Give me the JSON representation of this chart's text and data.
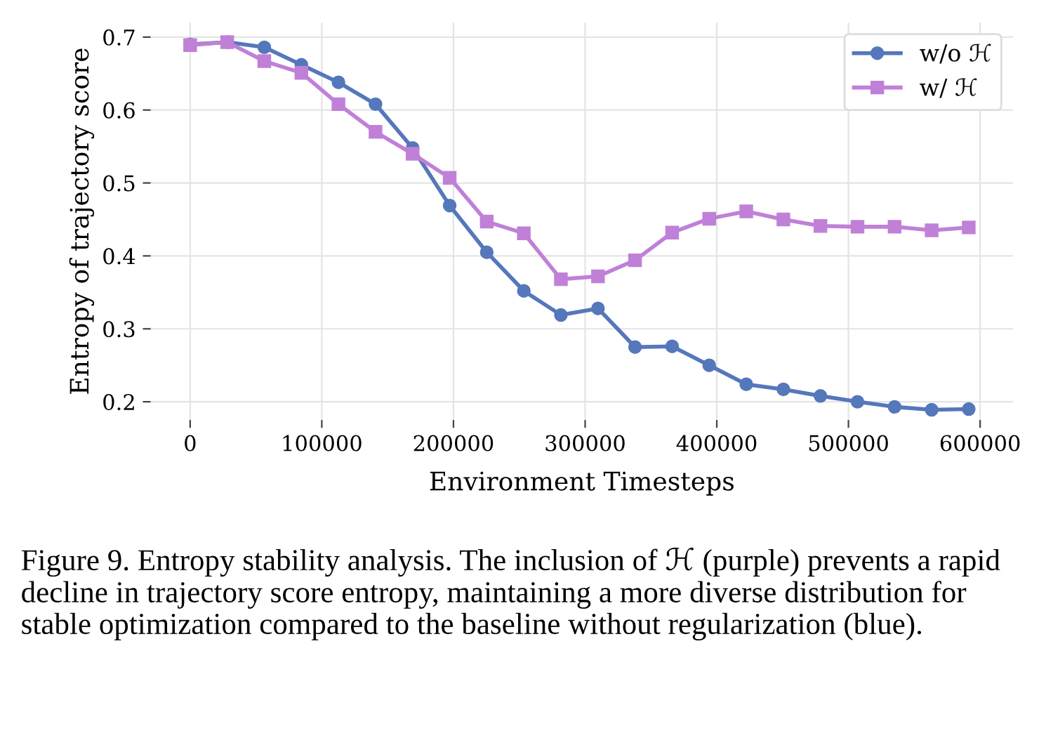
{
  "chart_data": {
    "type": "line",
    "xlabel": "Environment Timesteps",
    "ylabel": "Entropy of trajectory score",
    "x": [
      0,
      28160,
      56320,
      84480,
      112640,
      140800,
      168960,
      197120,
      225280,
      253440,
      281600,
      309760,
      337920,
      366080,
      394240,
      422400,
      450560,
      478720,
      506880,
      535040,
      563200,
      591360
    ],
    "series": [
      {
        "name": "w/o ℋ",
        "color": "#5577bb",
        "marker": "circle",
        "values": [
          0.69,
          0.693,
          0.686,
          0.662,
          0.638,
          0.608,
          0.548,
          0.469,
          0.405,
          0.352,
          0.319,
          0.328,
          0.275,
          0.276,
          0.25,
          0.224,
          0.217,
          0.208,
          0.2,
          0.193,
          0.189,
          0.19
        ]
      },
      {
        "name": "w/ ℋ",
        "color": "#c080d8",
        "marker": "square",
        "values": [
          0.689,
          0.693,
          0.667,
          0.651,
          0.608,
          0.57,
          0.54,
          0.507,
          0.447,
          0.431,
          0.368,
          0.372,
          0.394,
          0.432,
          0.451,
          0.461,
          0.45,
          0.441,
          0.44,
          0.44,
          0.435,
          0.439
        ]
      }
    ],
    "xticks": [
      0,
      100000,
      200000,
      300000,
      400000,
      500000,
      600000
    ],
    "yticks": [
      0.2,
      0.3,
      0.4,
      0.5,
      0.6,
      0.7
    ],
    "xlim": [
      -30000,
      625000
    ],
    "ylim": [
      0.175,
      0.72
    ],
    "grid": true,
    "legend": "top right",
    "line_style": "solid",
    "annotations": [
      "Figure 9. Entropy stability analysis. The inclusion of ℋ (purple) prevents a rapid decline in trajectory score entropy, maintaining a more diverse distribution for stable optimization compared to the baseline without regularization (blue)."
    ]
  }
}
